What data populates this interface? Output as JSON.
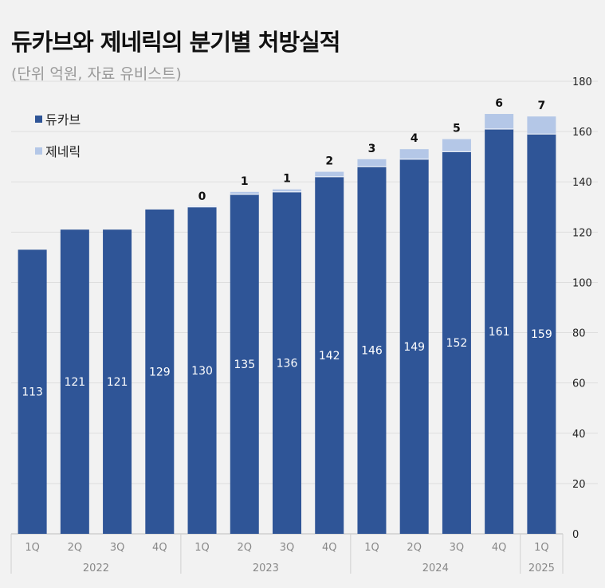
{
  "title": "듀카브와 제네릭의 분기별 처방실적",
  "subtitle": "(단위 억원, 자료 유비스트)",
  "chart_data": {
    "type": "bar",
    "stacked": true,
    "categories": [
      "1Q",
      "2Q",
      "3Q",
      "4Q",
      "1Q",
      "2Q",
      "3Q",
      "4Q",
      "1Q",
      "2Q",
      "3Q",
      "4Q",
      "1Q"
    ],
    "year_groups": [
      {
        "label": "2022",
        "count": 4
      },
      {
        "label": "2023",
        "count": 4
      },
      {
        "label": "2024",
        "count": 4
      },
      {
        "label": "2025",
        "count": 1
      }
    ],
    "series": [
      {
        "name": "듀카브",
        "color": "#2f5597",
        "values": [
          113,
          121,
          121,
          129,
          130,
          135,
          136,
          142,
          146,
          149,
          152,
          161,
          159
        ]
      },
      {
        "name": "제네릭",
        "color": "#b4c7e7",
        "values": [
          null,
          null,
          null,
          null,
          0,
          1,
          1,
          2,
          3,
          4,
          5,
          6,
          7
        ]
      }
    ],
    "ylim": [
      0,
      180
    ],
    "yticks": [
      0,
      20,
      40,
      60,
      80,
      100,
      120,
      140,
      160,
      180
    ],
    "grid": true,
    "legend_position": "top-left"
  }
}
